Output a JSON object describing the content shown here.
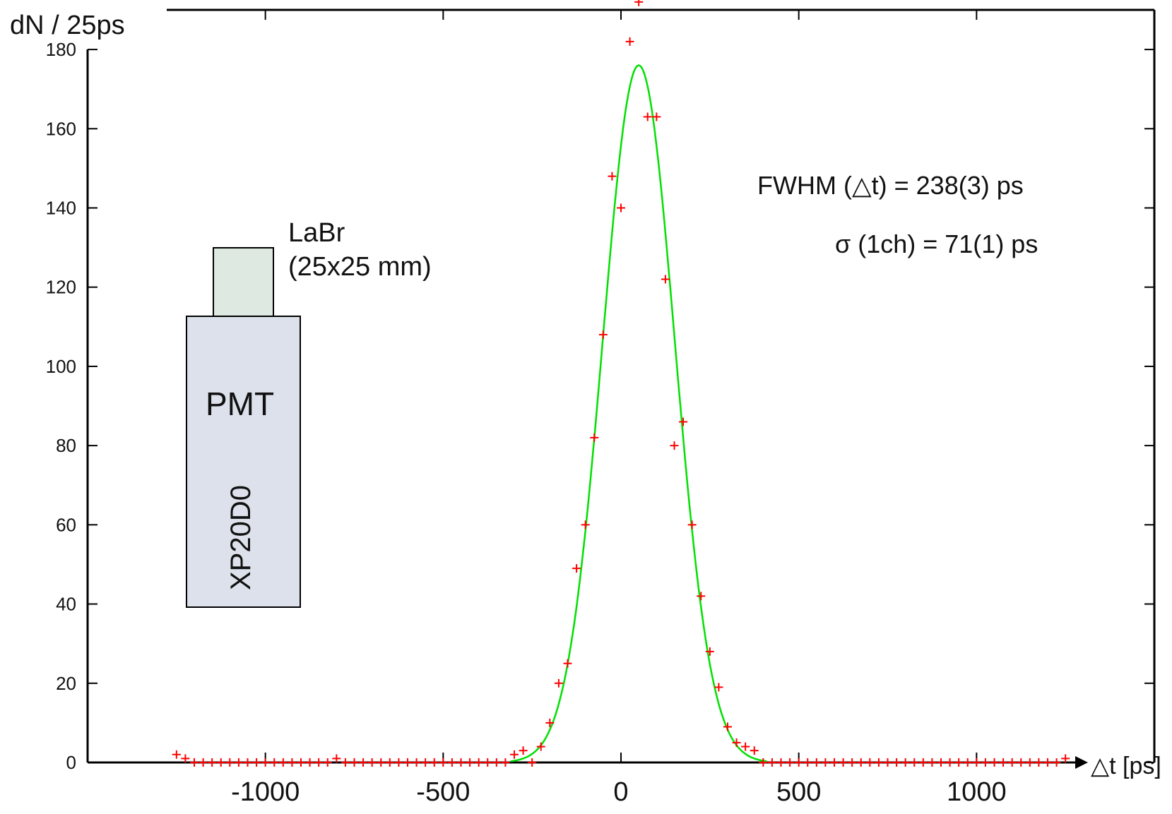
{
  "chart_data": {
    "type": "scatter",
    "ylabel": "dN / 25ps",
    "xlabel": "△t [ps]",
    "xlim": [
      -1500,
      1500
    ],
    "ylim": [
      0,
      190
    ],
    "x_ticks": [
      -1000,
      -500,
      0,
      500,
      1000
    ],
    "y_ticks": [
      0,
      20,
      40,
      60,
      80,
      100,
      120,
      140,
      160,
      180
    ],
    "grid": false,
    "colors": {
      "points": "#ff0000",
      "fit": "#00e000",
      "axes": "#000000"
    },
    "series": [
      {
        "marker": "plus",
        "points": [
          [
            -1250,
            2
          ],
          [
            -1225,
            1
          ],
          [
            -1200,
            0
          ],
          [
            -1175,
            0
          ],
          [
            -1150,
            0
          ],
          [
            -1125,
            0
          ],
          [
            -1100,
            0
          ],
          [
            -1075,
            0
          ],
          [
            -1050,
            0
          ],
          [
            -1025,
            0
          ],
          [
            -1000,
            0
          ],
          [
            -975,
            0
          ],
          [
            -950,
            0
          ],
          [
            -925,
            0
          ],
          [
            -900,
            0
          ],
          [
            -875,
            0
          ],
          [
            -850,
            0
          ],
          [
            -825,
            0
          ],
          [
            -800,
            1
          ],
          [
            -775,
            0
          ],
          [
            -750,
            0
          ],
          [
            -725,
            0
          ],
          [
            -700,
            0
          ],
          [
            -675,
            0
          ],
          [
            -650,
            0
          ],
          [
            -625,
            0
          ],
          [
            -600,
            0
          ],
          [
            -575,
            0
          ],
          [
            -550,
            0
          ],
          [
            -525,
            0
          ],
          [
            -500,
            0
          ],
          [
            -475,
            0
          ],
          [
            -450,
            0
          ],
          [
            -425,
            0
          ],
          [
            -400,
            0
          ],
          [
            -375,
            0
          ],
          [
            -350,
            0
          ],
          [
            -325,
            0
          ],
          [
            -300,
            2
          ],
          [
            -275,
            3
          ],
          [
            -250,
            0
          ],
          [
            -225,
            4
          ],
          [
            -200,
            10
          ],
          [
            -175,
            20
          ],
          [
            -150,
            25
          ],
          [
            -125,
            49
          ],
          [
            -100,
            60
          ],
          [
            -75,
            82
          ],
          [
            -50,
            108
          ],
          [
            -25,
            148
          ],
          [
            0,
            140
          ],
          [
            25,
            182
          ],
          [
            50,
            192
          ],
          [
            75,
            163
          ],
          [
            100,
            163
          ],
          [
            125,
            122
          ],
          [
            150,
            80
          ],
          [
            175,
            86
          ],
          [
            200,
            60
          ],
          [
            225,
            42
          ],
          [
            250,
            28
          ],
          [
            275,
            19
          ],
          [
            300,
            9
          ],
          [
            325,
            5
          ],
          [
            350,
            4
          ],
          [
            375,
            3
          ],
          [
            400,
            0
          ],
          [
            425,
            0
          ],
          [
            450,
            0
          ],
          [
            475,
            0
          ],
          [
            500,
            0
          ],
          [
            525,
            0
          ],
          [
            550,
            0
          ],
          [
            575,
            0
          ],
          [
            600,
            0
          ],
          [
            625,
            0
          ],
          [
            650,
            0
          ],
          [
            675,
            0
          ],
          [
            700,
            0
          ],
          [
            725,
            0
          ],
          [
            750,
            0
          ],
          [
            775,
            0
          ],
          [
            800,
            0
          ],
          [
            825,
            0
          ],
          [
            850,
            0
          ],
          [
            875,
            0
          ],
          [
            900,
            0
          ],
          [
            925,
            0
          ],
          [
            950,
            0
          ],
          [
            975,
            0
          ],
          [
            1000,
            0
          ],
          [
            1025,
            0
          ],
          [
            1050,
            0
          ],
          [
            1075,
            0
          ],
          [
            1100,
            0
          ],
          [
            1125,
            0
          ],
          [
            1150,
            0
          ],
          [
            1175,
            0
          ],
          [
            1200,
            0
          ],
          [
            1225,
            0
          ],
          [
            1250,
            1
          ]
        ]
      },
      {
        "type": "line",
        "fit": "gaussian",
        "amplitude": 176,
        "center": 50,
        "fwhm": 238
      }
    ],
    "annotations": [
      "FWHM (△t)  = 238(3) ps",
      "σ (1ch) = 71(1) ps"
    ]
  },
  "diagram": {
    "crystal_label_1": "LaBr",
    "crystal_label_2": "(25x25 mm)",
    "pmt_label": "PMT",
    "pmt_model": "XP20D0",
    "crystal_fill": "#dde9e1",
    "pmt_fill": "#dce1eb"
  }
}
